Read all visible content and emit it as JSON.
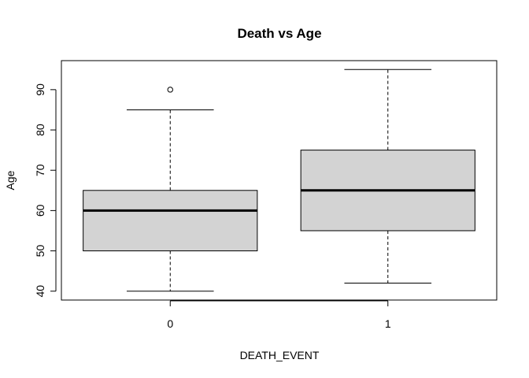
{
  "chart_data": {
    "type": "boxplot",
    "title": "Death vs Age",
    "xlabel": "DEATH_EVENT",
    "ylabel": "Age",
    "categories": [
      "0",
      "1"
    ],
    "boxes": [
      {
        "category": "0",
        "whisker_low": 40,
        "q1": 50,
        "median": 60,
        "q3": 65,
        "whisker_high": 85,
        "outliers": [
          90
        ]
      },
      {
        "category": "1",
        "whisker_low": 42,
        "q1": 55,
        "median": 65,
        "q3": 75,
        "whisker_high": 95,
        "outliers": []
      }
    ],
    "yticks": [
      40,
      50,
      60,
      70,
      80,
      90
    ],
    "ylim": [
      37.8,
      97.2
    ],
    "box_fill": "#d3d3d3",
    "grid": false,
    "legend": "none"
  }
}
